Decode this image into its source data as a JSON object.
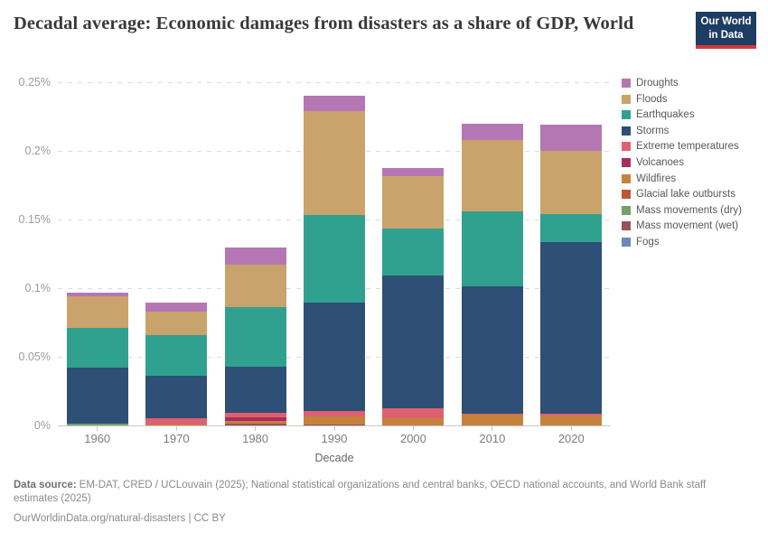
{
  "header": {
    "logo": {
      "line1": "Our World",
      "line2": "in Data",
      "bg_color": "#1d3d63",
      "accent_color": "#d23a3a"
    }
  },
  "chart_data": {
    "type": "bar",
    "stacked": true,
    "title": "Decadal average: Economic damages from disasters as a share of GDP, World",
    "xlabel": "Decade",
    "ylabel": "",
    "unit": "% of GDP",
    "ylim": [
      0,
      0.25
    ],
    "grid": "horizontal dashed",
    "legend_position": "right",
    "yticks": [
      {
        "value": 0,
        "label": "0%"
      },
      {
        "value": 0.05,
        "label": "0.05%"
      },
      {
        "value": 0.1,
        "label": "0.1%"
      },
      {
        "value": 0.15,
        "label": "0.15%"
      },
      {
        "value": 0.2,
        "label": "0.2%"
      },
      {
        "value": 0.25,
        "label": "0.25%"
      }
    ],
    "categories": [
      "1960",
      "1970",
      "1980",
      "1990",
      "2000",
      "2010",
      "2020"
    ],
    "series": [
      {
        "name": "Droughts",
        "color": "#b577b4",
        "values": [
          0.003,
          0.0068,
          0.0127,
          0.0115,
          0.0059,
          0.012,
          0.0185
        ]
      },
      {
        "name": "Floods",
        "color": "#c9a36c",
        "values": [
          0.0231,
          0.0173,
          0.0306,
          0.0755,
          0.0377,
          0.0515,
          0.0461
        ]
      },
      {
        "name": "Earthquakes",
        "color": "#30a08f",
        "values": [
          0.0288,
          0.0295,
          0.0436,
          0.064,
          0.0342,
          0.055,
          0.0207
        ]
      },
      {
        "name": "Storms",
        "color": "#2e4f76",
        "values": [
          0.0405,
          0.031,
          0.0332,
          0.0785,
          0.097,
          0.0925,
          0.125
        ]
      },
      {
        "name": "Extreme temperatures",
        "color": "#e0606f",
        "values": [
          0.0,
          0.0045,
          0.0038,
          0.0044,
          0.0074,
          0.001,
          0.0015
        ]
      },
      {
        "name": "Volcanoes",
        "color": "#a62f5e",
        "values": [
          0.0,
          0.0,
          0.0024,
          0.0,
          0.0,
          0.0,
          0.0
        ]
      },
      {
        "name": "Wildfires",
        "color": "#c5823d",
        "values": [
          0.0,
          0.0005,
          0.002,
          0.0056,
          0.0051,
          0.0076,
          0.007
        ]
      },
      {
        "name": "Glacial lake outbursts",
        "color": "#c05435",
        "values": [
          0.0,
          0.0,
          0.0,
          0.0,
          0.0,
          0.0,
          0.0
        ]
      },
      {
        "name": "Mass movements (dry)",
        "color": "#73a169",
        "values": [
          0.0015,
          0.0,
          0.0,
          0.0,
          0.0,
          0.0,
          0.0
        ]
      },
      {
        "name": "Mass movement (wet)",
        "color": "#9b4f58",
        "values": [
          0.0,
          0.0,
          0.0013,
          0.0008,
          0.0,
          0.0,
          0.0
        ]
      },
      {
        "name": "Fogs",
        "color": "#7187b5",
        "values": [
          0.0,
          0.0,
          0.0,
          0.0,
          0.0,
          0.0,
          0.0
        ]
      }
    ],
    "totals_pct": [
      0.0969,
      0.0896,
      0.1296,
      0.2403,
      0.1873,
      0.2196,
      0.2188
    ]
  },
  "footer": {
    "source_label": "Data source:",
    "source_text": "EM-DAT, CRED / UCLouvain (2025); National statistical organizations and central banks, OECD national accounts, and World Bank staff estimates (2025)",
    "license_text": "OurWorldinData.org/natural-disasters | CC BY"
  }
}
